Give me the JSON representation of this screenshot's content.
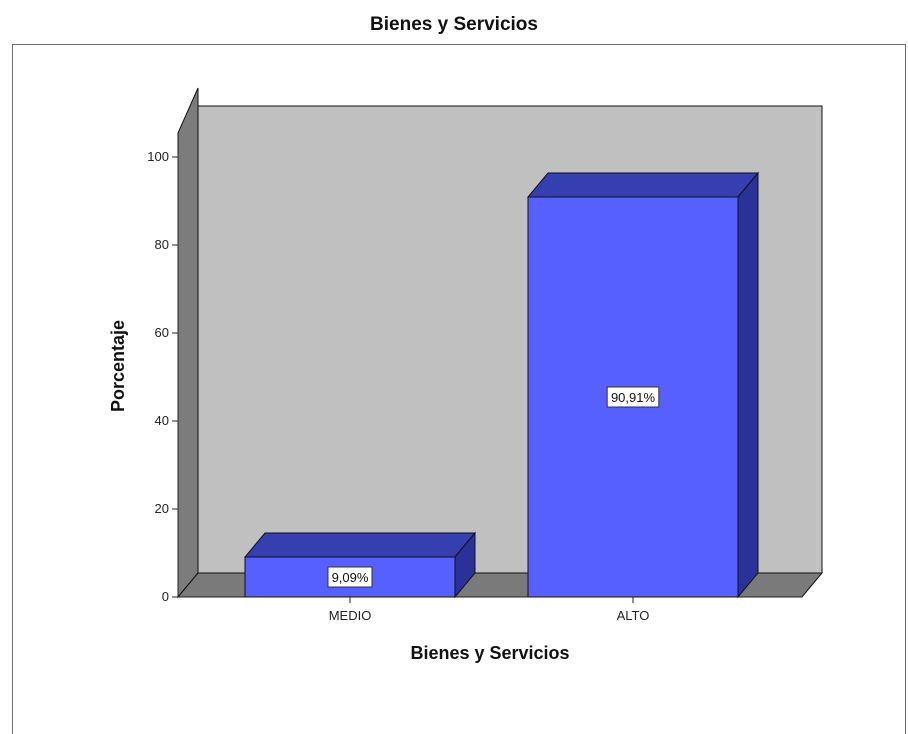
{
  "chart_data": {
    "type": "bar",
    "title": "Bienes y Servicios",
    "xlabel": "Bienes y Servicios",
    "ylabel": "Porcentaje",
    "categories": [
      "MEDIO",
      "ALTO"
    ],
    "values": [
      9.09,
      90.91
    ],
    "data_labels": [
      "9,09%",
      "90,91%"
    ],
    "yticks": [
      "0",
      "20",
      "40",
      "60",
      "80",
      "100"
    ],
    "ylim": [
      0,
      100
    ],
    "grid": false,
    "legend": "none",
    "style": "3d",
    "colors": {
      "bar_front": "#5660fe",
      "bar_top": "#353fb0",
      "bar_side": "#2a329a",
      "back_wall": "#c0c0c0",
      "side_wall": "#7c7c7c",
      "floor": "#7a7a7a"
    }
  }
}
